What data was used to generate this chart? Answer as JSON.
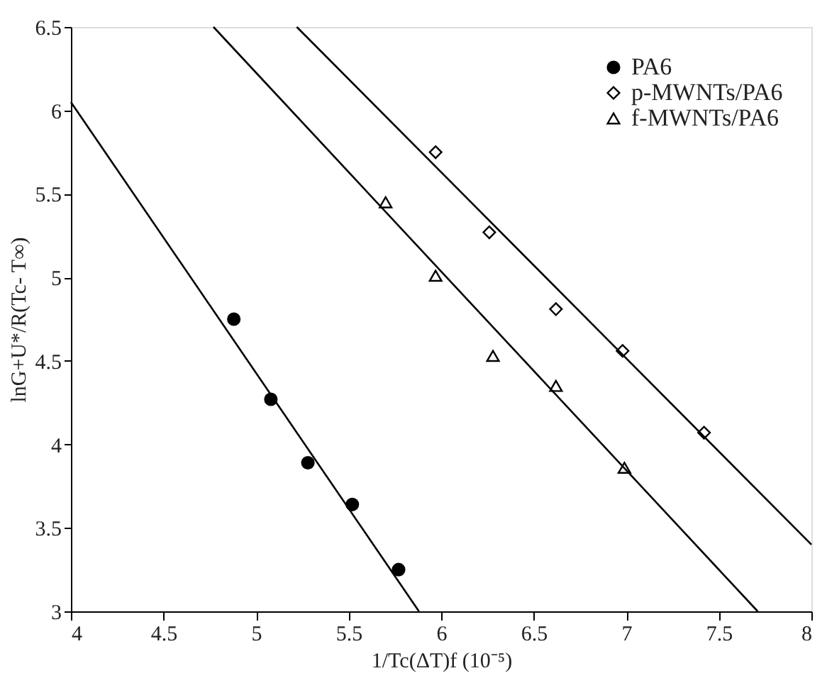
{
  "chart_data": {
    "type": "scatter",
    "xlabel": "1/Tc(ΔT)f (10⁻⁵)",
    "ylabel": "lnG+U*/R(Tc- T∞)",
    "xlim": [
      4,
      8
    ],
    "ylim": [
      3,
      6.5
    ],
    "xticks": [
      4,
      4.5,
      5,
      5.5,
      6,
      6.5,
      7,
      7.5,
      8
    ],
    "yticks": [
      3,
      3.5,
      4,
      4.5,
      5,
      5.5,
      6,
      6.5
    ],
    "grid": false,
    "legend": "top right",
    "series": [
      {
        "name": "PA6",
        "marker": "circle",
        "color": "#000000",
        "x": [
          4.88,
          5.08,
          5.28,
          5.52,
          5.77
        ],
        "values": [
          4.75,
          4.27,
          3.89,
          3.64,
          3.25
        ]
      },
      {
        "name": "p-MWNTs/PA6",
        "marker": "diamond",
        "color": "#000000",
        "x": [
          5.97,
          6.26,
          6.62,
          6.98,
          7.42
        ],
        "values": [
          5.75,
          5.27,
          4.81,
          4.56,
          4.07
        ]
      },
      {
        "name": "f-MWNTs/PA6",
        "marker": "triangle",
        "color": "#000000",
        "x": [
          5.7,
          5.97,
          6.28,
          6.62,
          6.99
        ],
        "values": [
          5.45,
          5.01,
          4.53,
          4.35,
          3.86
        ]
      },
      {
        "type": "line",
        "color": "#000000",
        "line_style": "solid",
        "x": [
          4.0,
          5.88
        ],
        "values": [
          6.05,
          3.0
        ]
      },
      {
        "type": "line",
        "color": "#000000",
        "line_style": "solid",
        "x": [
          5.22,
          8.0
        ],
        "values": [
          6.5,
          3.4
        ]
      },
      {
        "type": "line",
        "color": "#000000",
        "line_style": "solid",
        "x": [
          4.77,
          7.71
        ],
        "values": [
          6.5,
          3.0
        ]
      }
    ]
  }
}
